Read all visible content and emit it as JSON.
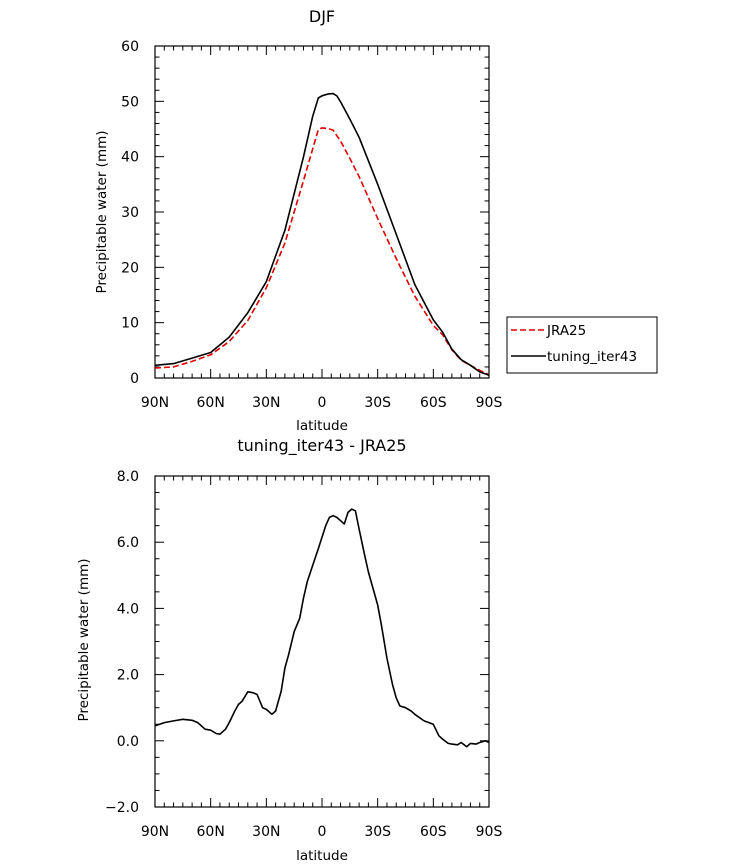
{
  "chart_data": [
    {
      "type": "line",
      "title": "DJF",
      "xlabel": "latitude",
      "ylabel": "Precipitable water (mm)",
      "xlim": [
        -90,
        90
      ],
      "ylim": [
        0,
        60
      ],
      "x_tick_labels": [
        "90N",
        "60N",
        "30N",
        "0",
        "30S",
        "60S",
        "90S"
      ],
      "y_tick_labels": [
        "0",
        "10",
        "20",
        "30",
        "40",
        "50",
        "60"
      ],
      "legend_position": "right",
      "series": [
        {
          "name": "JRA25",
          "color": "#e00000",
          "style": "dashed",
          "x": [
            -90,
            -80,
            -70,
            -60,
            -50,
            -40,
            -30,
            -20,
            -10,
            -5,
            -2,
            0,
            3,
            6,
            10,
            15,
            20,
            30,
            40,
            50,
            60,
            65,
            70,
            75,
            80,
            85,
            90
          ],
          "y": [
            1.8,
            2.0,
            3.0,
            4.2,
            6.6,
            10.4,
            16.3,
            24.4,
            35.6,
            41.4,
            44.9,
            45.2,
            45.1,
            44.8,
            42.8,
            39.7,
            36.4,
            28.8,
            21.6,
            14.8,
            9.5,
            7.8,
            5.1,
            3.2,
            2.3,
            1.4,
            0.6
          ]
        },
        {
          "name": "tuning_iter43",
          "color": "#000000",
          "style": "solid",
          "x": [
            -90,
            -80,
            -70,
            -60,
            -50,
            -40,
            -30,
            -20,
            -10,
            -5,
            -2,
            0,
            3,
            6,
            8,
            10,
            15,
            20,
            30,
            40,
            50,
            60,
            65,
            70,
            75,
            80,
            85,
            90
          ],
          "y": [
            2.3,
            2.6,
            3.6,
            4.6,
            7.4,
            11.8,
            17.4,
            26.7,
            39.9,
            47.3,
            50.6,
            51.0,
            51.3,
            51.4,
            51.0,
            49.9,
            46.8,
            43.5,
            35.0,
            26.0,
            16.9,
            10.5,
            8.3,
            5.2,
            3.3,
            2.3,
            1.1,
            0.5
          ]
        }
      ]
    },
    {
      "type": "line",
      "title": "tuning_iter43 - JRA25",
      "xlabel": "latitude",
      "ylabel": "Precipitable water (mm)",
      "xlim": [
        -90,
        90
      ],
      "ylim": [
        -2,
        8
      ],
      "x_tick_labels": [
        "90N",
        "60N",
        "30N",
        "0",
        "30S",
        "60S",
        "90S"
      ],
      "y_tick_labels": [
        "-2.0",
        "0.0",
        "2.0",
        "4.0",
        "6.0",
        "8.0"
      ],
      "series": [
        {
          "color": "#000000",
          "style": "solid",
          "x": [
            -90,
            -85,
            -80,
            -75,
            -70,
            -67,
            -63,
            -60,
            -57,
            -55,
            -52,
            -50,
            -47,
            -45,
            -43,
            -40,
            -37,
            -35,
            -32,
            -30,
            -27,
            -25,
            -22,
            -20,
            -18,
            -15,
            -12,
            -10,
            -8,
            -5,
            -2,
            0,
            2,
            4,
            6,
            8,
            10,
            12,
            14,
            16,
            18,
            20,
            23,
            25,
            28,
            30,
            32,
            35,
            38,
            40,
            42,
            45,
            48,
            50,
            55,
            60,
            63,
            65,
            68,
            70,
            73,
            75,
            78,
            80,
            83,
            85,
            88,
            90
          ],
          "y": [
            0.45,
            0.55,
            0.6,
            0.65,
            0.62,
            0.55,
            0.35,
            0.32,
            0.22,
            0.2,
            0.35,
            0.55,
            0.9,
            1.1,
            1.2,
            1.48,
            1.45,
            1.4,
            1.0,
            0.95,
            0.8,
            0.9,
            1.5,
            2.2,
            2.6,
            3.3,
            3.7,
            4.3,
            4.8,
            5.3,
            5.8,
            6.15,
            6.5,
            6.75,
            6.8,
            6.75,
            6.65,
            6.55,
            6.9,
            7.0,
            6.95,
            6.4,
            5.6,
            5.1,
            4.5,
            4.1,
            3.5,
            2.5,
            1.7,
            1.3,
            1.05,
            1.0,
            0.9,
            0.8,
            0.6,
            0.5,
            0.15,
            0.05,
            -0.08,
            -0.1,
            -0.12,
            -0.05,
            -0.18,
            -0.08,
            -0.1,
            -0.05,
            0.0,
            -0.05
          ]
        }
      ]
    }
  ]
}
